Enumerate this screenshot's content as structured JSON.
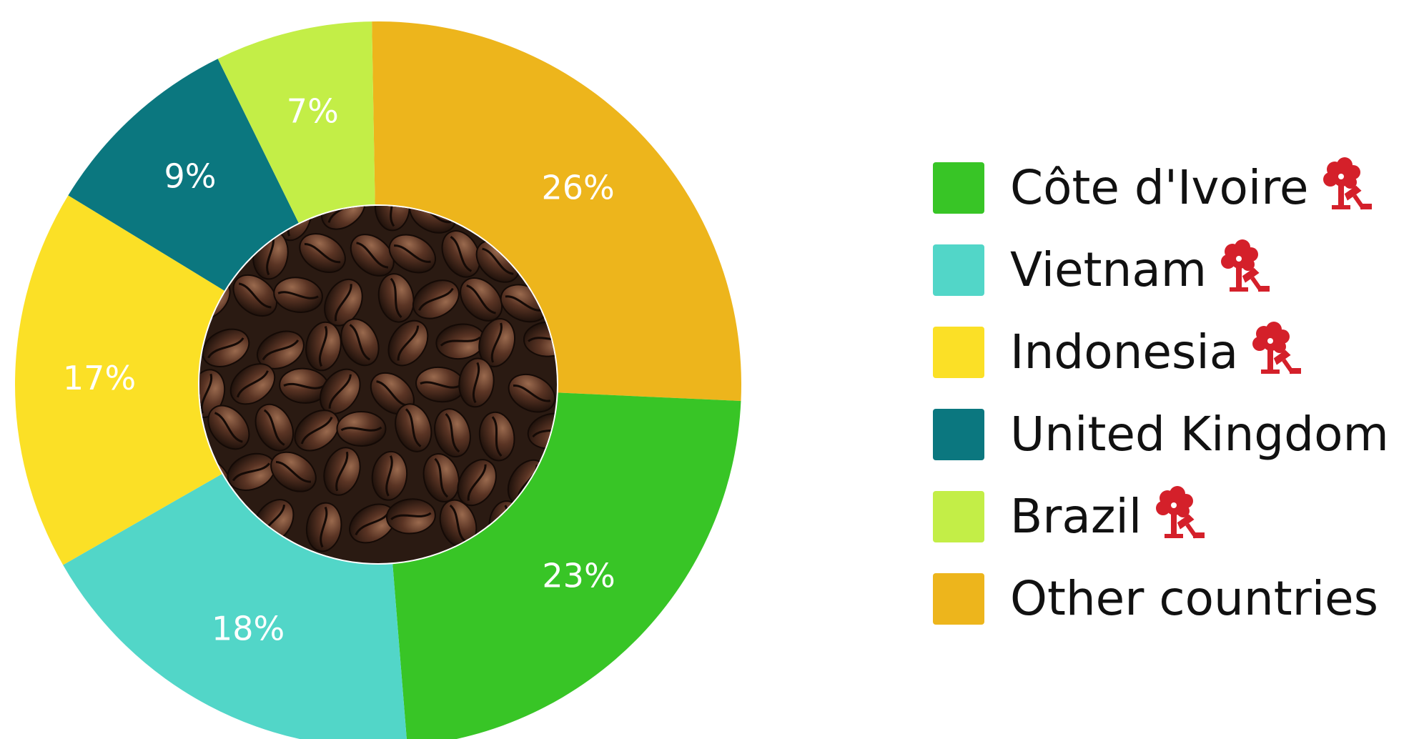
{
  "colors": {
    "background": "#ffffff",
    "deforestation_icon": "#d4202a",
    "beans_dark": "#2a1a12"
  },
  "chart_data": {
    "type": "pie",
    "style": "donut",
    "legend_position": "right",
    "center_image": "coffee-beans",
    "start_angle_deg": -1,
    "slices": [
      {
        "name": "Other countries",
        "value": 26,
        "label": "26%",
        "color": "#EDB51C"
      },
      {
        "name": "Côte d'Ivoire",
        "value": 23,
        "label": "23%",
        "color": "#38C526"
      },
      {
        "name": "Vietnam",
        "value": 18,
        "label": "18%",
        "color": "#52D6C8"
      },
      {
        "name": "Indonesia",
        "value": 17,
        "label": "17%",
        "color": "#FBE026"
      },
      {
        "name": "United Kingdom",
        "value": 9,
        "label": "9%",
        "color": "#0B777F"
      },
      {
        "name": "Brazil",
        "value": 7,
        "label": "7%",
        "color": "#C3EE47"
      }
    ]
  },
  "legend": {
    "items": [
      {
        "label": "Côte d'Ivoire",
        "color": "#38C526",
        "icon": "deforestation-icon"
      },
      {
        "label": "Vietnam",
        "color": "#52D6C8",
        "icon": "deforestation-icon"
      },
      {
        "label": "Indonesia",
        "color": "#FBE026",
        "icon": "deforestation-icon"
      },
      {
        "label": "United Kingdom",
        "color": "#0B777F",
        "icon": null
      },
      {
        "label": "Brazil",
        "color": "#C3EE47",
        "icon": "deforestation-icon"
      },
      {
        "label": "Other countries",
        "color": "#EDB51C",
        "icon": null
      }
    ]
  }
}
